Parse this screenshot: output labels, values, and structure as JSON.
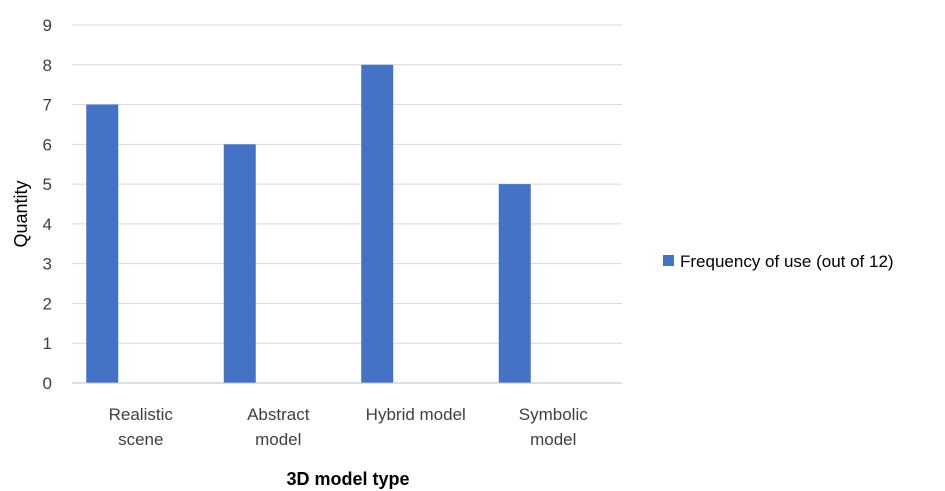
{
  "chart_data": {
    "type": "bar",
    "categories": [
      [
        "Realistic",
        "scene"
      ],
      [
        "Abstract",
        "model"
      ],
      [
        "Hybrid model"
      ],
      [
        "Symbolic",
        "model"
      ]
    ],
    "series": [
      {
        "name": "Frequency of use (out of 12)",
        "values": [
          7,
          6,
          8,
          5
        ],
        "color": "#4472C4"
      }
    ],
    "xlabel": "3D model type",
    "ylabel": "Quantity",
    "ylim": [
      0,
      9
    ],
    "yticks": [
      0,
      1,
      2,
      3,
      4,
      5,
      6,
      7,
      8,
      9
    ],
    "grid": true,
    "legend_position": "right"
  }
}
